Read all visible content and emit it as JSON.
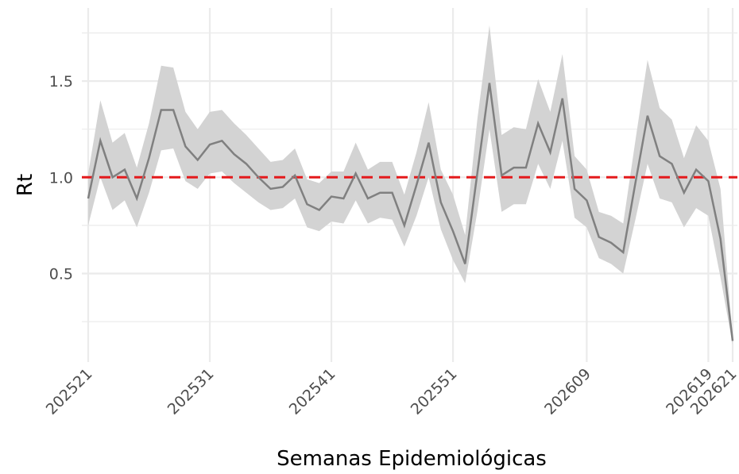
{
  "chart_data": {
    "type": "ribbon-line",
    "x_label": "Semanas Epidemiológicas",
    "y_label": "Rt",
    "categories": [
      "202521",
      null,
      null,
      null,
      null,
      null,
      null,
      null,
      null,
      null,
      "202531",
      null,
      null,
      null,
      null,
      null,
      null,
      null,
      null,
      null,
      "202541",
      null,
      null,
      null,
      null,
      null,
      null,
      null,
      null,
      null,
      "202551",
      null,
      null,
      null,
      null,
      null,
      null,
      null,
      null,
      null,
      null,
      "202609",
      null,
      null,
      null,
      null,
      null,
      null,
      null,
      null,
      null,
      "202619",
      null,
      "202621"
    ],
    "values": [
      0.89,
      1.19,
      1.0,
      1.04,
      0.89,
      1.1,
      1.35,
      1.35,
      1.16,
      1.09,
      1.17,
      1.19,
      1.12,
      1.07,
      1.0,
      0.94,
      0.95,
      1.01,
      0.86,
      0.83,
      0.9,
      0.89,
      1.02,
      0.89,
      0.92,
      0.92,
      0.75,
      0.96,
      1.18,
      0.87,
      0.72,
      0.55,
      1.02,
      1.49,
      1.01,
      1.05,
      1.05,
      1.28,
      1.13,
      1.41,
      0.94,
      0.88,
      0.69,
      0.66,
      0.61,
      0.97,
      1.32,
      1.11,
      1.07,
      0.92,
      1.04,
      0.98,
      0.68,
      0.15
    ],
    "upper": [
      1.02,
      1.4,
      1.18,
      1.23,
      1.05,
      1.28,
      1.58,
      1.57,
      1.34,
      1.25,
      1.34,
      1.35,
      1.28,
      1.22,
      1.15,
      1.08,
      1.09,
      1.15,
      0.99,
      0.97,
      1.03,
      1.03,
      1.18,
      1.04,
      1.08,
      1.08,
      0.91,
      1.13,
      1.39,
      1.04,
      0.91,
      0.7,
      1.3,
      1.79,
      1.22,
      1.26,
      1.25,
      1.51,
      1.34,
      1.64,
      1.11,
      1.04,
      0.82,
      0.8,
      0.76,
      1.19,
      1.61,
      1.36,
      1.3,
      1.1,
      1.27,
      1.19,
      0.94,
      0.17
    ],
    "lower": [
      0.75,
      1.0,
      0.83,
      0.88,
      0.74,
      0.92,
      1.14,
      1.15,
      0.98,
      0.94,
      1.02,
      1.03,
      0.97,
      0.92,
      0.87,
      0.83,
      0.84,
      0.89,
      0.74,
      0.72,
      0.77,
      0.76,
      0.88,
      0.76,
      0.79,
      0.78,
      0.64,
      0.8,
      1.0,
      0.73,
      0.57,
      0.45,
      0.82,
      1.25,
      0.82,
      0.86,
      0.86,
      1.07,
      0.94,
      1.19,
      0.79,
      0.74,
      0.58,
      0.55,
      0.5,
      0.78,
      1.07,
      0.89,
      0.87,
      0.74,
      0.84,
      0.8,
      0.48,
      0.13
    ],
    "color": "#808080",
    "band_color": "#d3d3d3",
    "hline": 1,
    "hline_color": "#e41a1c",
    "ylim": [
      0.04,
      1.88
    ],
    "yticks": [
      0.5,
      {
        "value": 1,
        "label": "1.0"
      },
      1.5
    ],
    "grid": true
  }
}
